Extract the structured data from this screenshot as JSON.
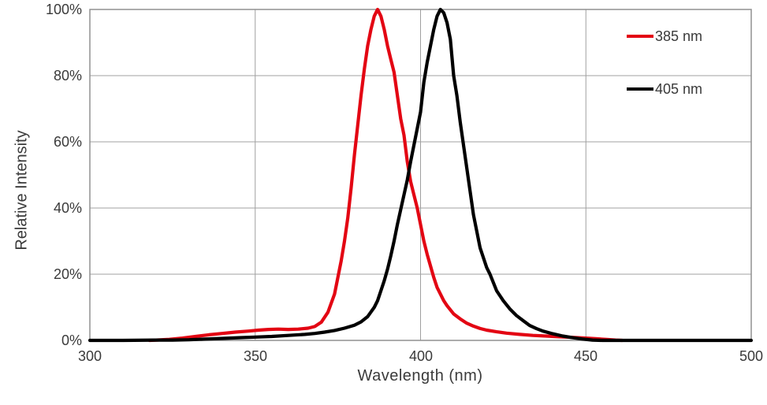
{
  "chart_data": {
    "type": "line",
    "title": "",
    "xlabel": "Wavelength (nm)",
    "ylabel": "Relative Intensity",
    "xlim": [
      300,
      500
    ],
    "ylim": [
      0,
      100
    ],
    "x_tick_labels": [
      "300",
      "350",
      "400",
      "450",
      "500"
    ],
    "y_tick_labels": [
      "100%",
      "80%",
      "60%",
      "40%",
      "20%",
      "0%"
    ],
    "grid": true,
    "grid_x": [
      350,
      400,
      450
    ],
    "grid_y": [
      20,
      40,
      60,
      80
    ],
    "legend_position": "top-right",
    "colors": {
      "grid": "#a0a0a0",
      "border": "#909090",
      "text": "#3a3a3a"
    },
    "series": [
      {
        "name": "385 nm",
        "color": "#e30613",
        "points": [
          [
            318,
            0
          ],
          [
            320,
            0.1
          ],
          [
            324,
            0.3
          ],
          [
            328,
            0.7
          ],
          [
            332,
            1.2
          ],
          [
            336,
            1.7
          ],
          [
            340,
            2.1
          ],
          [
            344,
            2.5
          ],
          [
            348,
            2.8
          ],
          [
            351,
            3.1
          ],
          [
            354,
            3.3
          ],
          [
            357,
            3.4
          ],
          [
            360,
            3.3
          ],
          [
            363,
            3.4
          ],
          [
            366,
            3.7
          ],
          [
            368,
            4.2
          ],
          [
            370,
            5.5
          ],
          [
            372,
            8.5
          ],
          [
            374,
            14
          ],
          [
            375,
            19
          ],
          [
            376,
            24
          ],
          [
            377,
            30
          ],
          [
            378,
            37
          ],
          [
            379,
            46
          ],
          [
            380,
            56
          ],
          [
            381,
            65
          ],
          [
            382,
            74
          ],
          [
            383,
            82
          ],
          [
            384,
            89
          ],
          [
            385,
            94
          ],
          [
            386,
            98
          ],
          [
            387,
            100
          ],
          [
            388,
            98
          ],
          [
            389,
            94
          ],
          [
            390,
            89
          ],
          [
            391,
            85
          ],
          [
            392,
            81
          ],
          [
            393,
            74
          ],
          [
            394,
            67
          ],
          [
            395,
            62
          ],
          [
            396,
            54
          ],
          [
            397,
            48
          ],
          [
            398,
            44
          ],
          [
            399,
            40
          ],
          [
            400,
            35
          ],
          [
            401,
            30
          ],
          [
            402,
            26
          ],
          [
            403,
            22.5
          ],
          [
            404,
            19
          ],
          [
            405,
            16
          ],
          [
            406,
            14
          ],
          [
            407,
            12
          ],
          [
            408,
            10.5
          ],
          [
            410,
            8
          ],
          [
            412,
            6.5
          ],
          [
            414,
            5.2
          ],
          [
            416,
            4.3
          ],
          [
            418,
            3.6
          ],
          [
            420,
            3.1
          ],
          [
            423,
            2.6
          ],
          [
            426,
            2.2
          ],
          [
            430,
            1.8
          ],
          [
            434,
            1.5
          ],
          [
            438,
            1.3
          ],
          [
            442,
            1.1
          ],
          [
            446,
            0.9
          ],
          [
            450,
            0.7
          ],
          [
            453,
            0.5
          ],
          [
            456,
            0.3
          ],
          [
            459,
            0.1
          ],
          [
            461,
            0
          ]
        ]
      },
      {
        "name": "405 nm",
        "color": "#000000",
        "points": [
          [
            300,
            0
          ],
          [
            310,
            0
          ],
          [
            320,
            0.1
          ],
          [
            325,
            0.1
          ],
          [
            330,
            0.2
          ],
          [
            335,
            0.4
          ],
          [
            340,
            0.6
          ],
          [
            345,
            0.8
          ],
          [
            350,
            1.0
          ],
          [
            355,
            1.2
          ],
          [
            360,
            1.5
          ],
          [
            365,
            1.8
          ],
          [
            368,
            2.1
          ],
          [
            371,
            2.5
          ],
          [
            374,
            3.0
          ],
          [
            377,
            3.7
          ],
          [
            380,
            4.6
          ],
          [
            382,
            5.6
          ],
          [
            384,
            7.2
          ],
          [
            386,
            10
          ],
          [
            387,
            12
          ],
          [
            388,
            15
          ],
          [
            389,
            18
          ],
          [
            390,
            21.5
          ],
          [
            391,
            25.5
          ],
          [
            392,
            30
          ],
          [
            393,
            35
          ],
          [
            394,
            39.5
          ],
          [
            395,
            44
          ],
          [
            396,
            48.5
          ],
          [
            397,
            54
          ],
          [
            398,
            59
          ],
          [
            399,
            64
          ],
          [
            400,
            69
          ],
          [
            401,
            78
          ],
          [
            402,
            84
          ],
          [
            403,
            89
          ],
          [
            404,
            94
          ],
          [
            405,
            98
          ],
          [
            406,
            100
          ],
          [
            407,
            99
          ],
          [
            408,
            96
          ],
          [
            409,
            91
          ],
          [
            410,
            80
          ],
          [
            411,
            74
          ],
          [
            412,
            66
          ],
          [
            413,
            59
          ],
          [
            414,
            52
          ],
          [
            415,
            45
          ],
          [
            416,
            38
          ],
          [
            417,
            33
          ],
          [
            418,
            28
          ],
          [
            419,
            25
          ],
          [
            420,
            22
          ],
          [
            421,
            20
          ],
          [
            423,
            15
          ],
          [
            425,
            12
          ],
          [
            427,
            9.5
          ],
          [
            429,
            7.5
          ],
          [
            431,
            6
          ],
          [
            433,
            4.5
          ],
          [
            435,
            3.6
          ],
          [
            437,
            2.8
          ],
          [
            440,
            2.0
          ],
          [
            443,
            1.3
          ],
          [
            446,
            0.8
          ],
          [
            449,
            0.4
          ],
          [
            452,
            0.1
          ],
          [
            455,
            0
          ],
          [
            470,
            0
          ],
          [
            485,
            0
          ],
          [
            500,
            0
          ]
        ]
      }
    ]
  },
  "legend": {
    "items": [
      {
        "label": "385 nm",
        "color": "#e30613"
      },
      {
        "label": "405 nm",
        "color": "#000000"
      }
    ]
  }
}
